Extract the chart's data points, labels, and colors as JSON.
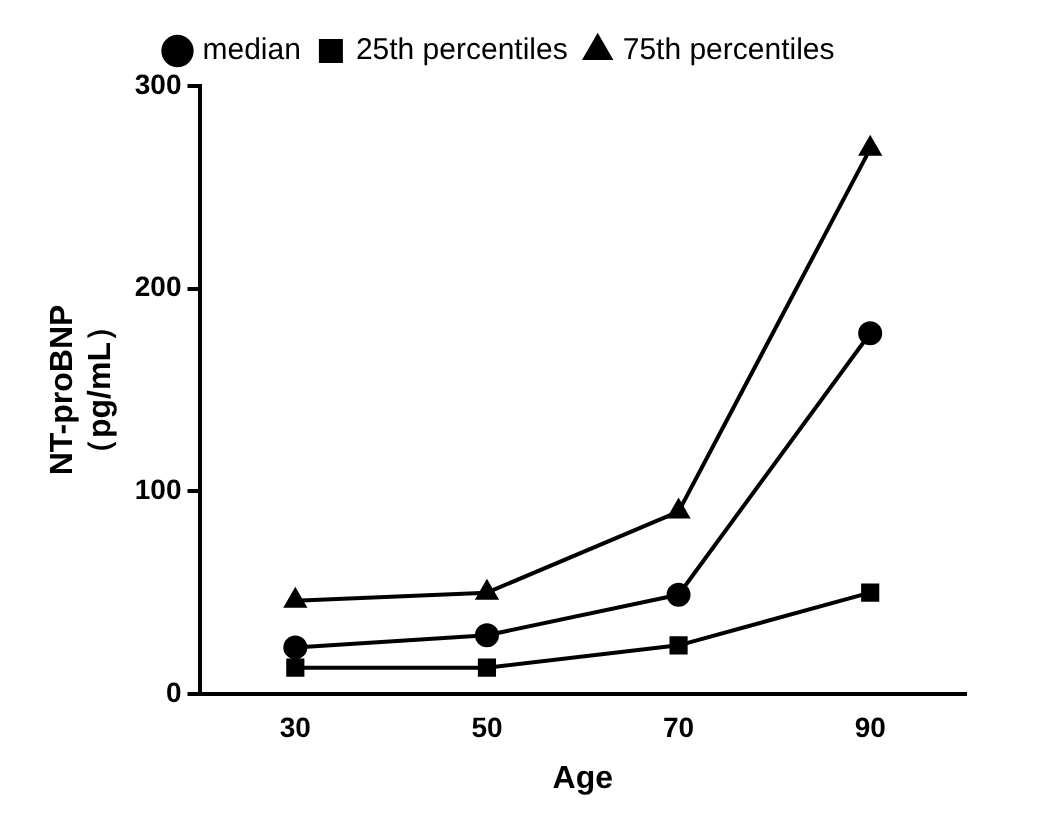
{
  "chart_data": {
    "type": "line",
    "xlabel": "Age",
    "ylabel": "NT-proBNP\n（pg/mL）",
    "categories": [
      "30",
      "50",
      "70",
      "90"
    ],
    "series": [
      {
        "name": "median",
        "color": "#000000",
        "marker": "circle",
        "values": [
          23,
          29,
          49,
          178
        ]
      },
      {
        "name": "25th percentiles",
        "color": "#000000",
        "marker": "square",
        "values": [
          13,
          13,
          24,
          50
        ]
      },
      {
        "name": "75th percentiles",
        "color": "#000000",
        "marker": "triangle",
        "values": [
          46,
          50,
          90,
          269
        ]
      }
    ],
    "ylim": [
      0,
      300
    ],
    "yticks": [
      0,
      100,
      200,
      300
    ],
    "grid": false,
    "legend": "top",
    "line_style": "solid"
  }
}
